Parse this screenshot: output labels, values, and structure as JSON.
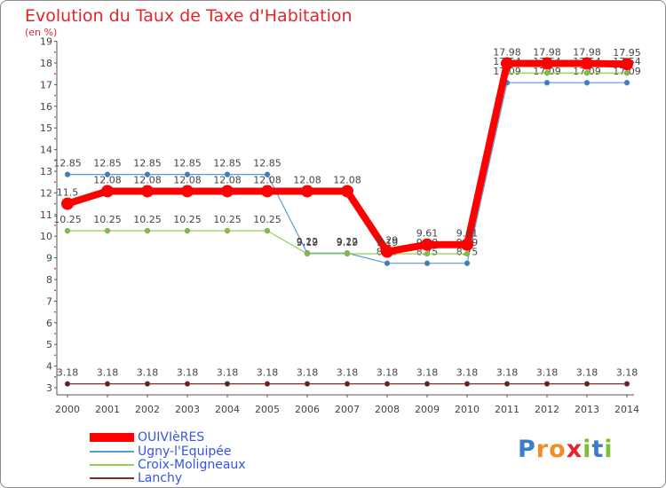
{
  "title": "Evolution du Taux de Taxe d'Habitation",
  "subtitle": "(en %)",
  "logo": {
    "text": "Proxiti",
    "letters": [
      "P",
      "r",
      "o",
      "x",
      "i",
      "t",
      "i"
    ]
  },
  "colors": {
    "OUIVIèRES": "#ff0000",
    "Ugny-l'Equipée": "#5b9bd5",
    "Croix-Moligneaux": "#92d050",
    "Lanchy": "#7b2c2c",
    "text": "#e2262b",
    "legendText": "#3355ee"
  },
  "chart_data": {
    "type": "line",
    "title": "Evolution du Taux de Taxe d'Habitation",
    "ylabel": "(en %)",
    "xlabel": "",
    "ylim": [
      3,
      19
    ],
    "grid": false,
    "legend_position": "bottom-left",
    "categories": [
      "2000",
      "2001",
      "2002",
      "2003",
      "2004",
      "2005",
      "2006",
      "2007",
      "2008",
      "2009",
      "2010",
      "2011",
      "2012",
      "2013",
      "2014"
    ],
    "yticks": [
      "3",
      "4",
      "5",
      "6",
      "7",
      "8",
      "9",
      "10",
      "11",
      "12",
      "13",
      "14",
      "15",
      "16",
      "17",
      "18",
      "19"
    ],
    "series": [
      {
        "name": "Ugny-l'Equipée",
        "values": [
          12.85,
          12.85,
          12.85,
          12.85,
          12.85,
          12.85,
          9.22,
          9.22,
          8.75,
          8.75,
          8.75,
          17.09,
          17.09,
          17.09,
          17.09
        ],
        "labels": [
          "12.85",
          "12.85",
          "12.85",
          "12.85",
          "12.85",
          "12.85",
          "9.22",
          "9.22",
          "8.75",
          "8.75",
          "8.75",
          "17.09",
          "17.09",
          "17.09",
          "17.09"
        ]
      },
      {
        "name": "Croix-Moligneaux",
        "values": [
          10.25,
          10.25,
          10.25,
          10.25,
          10.25,
          10.25,
          9.19,
          9.19,
          9.19,
          9.19,
          9.19,
          17.54,
          17.54,
          17.54,
          17.54
        ],
        "labels": [
          "10.25",
          "10.25",
          "10.25",
          "10.25",
          "10.25",
          "10.25",
          "9.19",
          "9.19",
          "9.19",
          "9.19",
          "9.19",
          "17.54",
          "17.54",
          "17.54",
          "17.54"
        ]
      },
      {
        "name": "Lanchy",
        "values": [
          3.18,
          3.18,
          3.18,
          3.18,
          3.18,
          3.18,
          3.18,
          3.18,
          3.18,
          3.18,
          3.18,
          3.18,
          3.18,
          3.18,
          3.18
        ],
        "labels": [
          "3.18",
          "3.18",
          "3.18",
          "3.18",
          "3.18",
          "3.18",
          "3.18",
          "3.18",
          "3.18",
          "3.18",
          "3.18",
          "3.18",
          "3.18",
          "3.18",
          "3.18"
        ]
      },
      {
        "name": "OUIVIèRES",
        "values": [
          11.5,
          12.08,
          12.08,
          12.08,
          12.08,
          12.08,
          12.08,
          12.08,
          9.29,
          9.61,
          9.61,
          17.98,
          17.98,
          17.98,
          17.95
        ],
        "labels": [
          "11.5",
          "12.08",
          "12.08",
          "12.08",
          "12.08",
          "12.08",
          "12.08",
          "12.08",
          "9.29",
          "9.61",
          "9.61",
          "17.98",
          "17.98",
          "17.98",
          "17.95"
        ]
      }
    ],
    "legend": [
      "OUIVIèRES",
      "Ugny-l'Equipée",
      "Croix-Moligneaux",
      "Lanchy"
    ]
  }
}
